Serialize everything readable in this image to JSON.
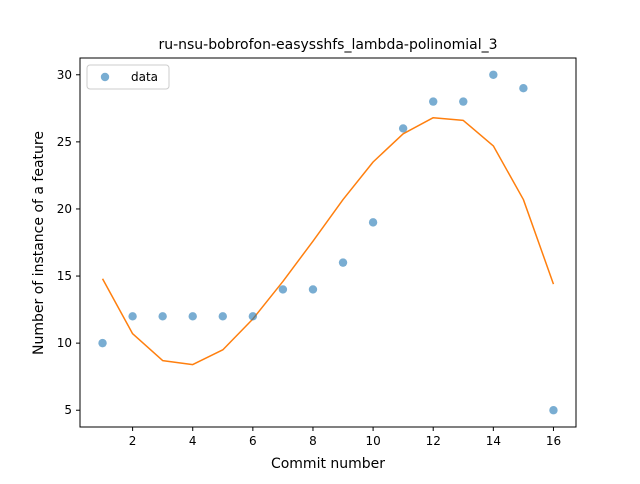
{
  "chart_data": {
    "type": "scatter",
    "title": "ru-nsu-bobrofon-easysshfs_lambda-polinomial_3",
    "xlabel": "Commit number",
    "ylabel": "Number of instance of a feature",
    "xlim": [
      0.25,
      16.75
    ],
    "ylim": [
      3.75,
      31.25
    ],
    "xticks": [
      2,
      4,
      6,
      8,
      10,
      12,
      14,
      16
    ],
    "yticks": [
      5,
      10,
      15,
      20,
      25,
      30
    ],
    "grid": false,
    "legend": {
      "placement": "top-left",
      "entries": [
        {
          "label": "data",
          "color": "#1f77b4",
          "marker": "circle"
        }
      ]
    },
    "series": [
      {
        "name": "data",
        "kind": "scatter",
        "color": "#1f77b4",
        "x": [
          1,
          2,
          3,
          4,
          5,
          6,
          7,
          8,
          9,
          10,
          11,
          12,
          13,
          14,
          15,
          16
        ],
        "y": [
          10,
          12,
          12,
          12,
          12,
          12,
          14,
          14,
          16,
          19,
          26,
          28,
          28,
          30,
          29,
          5
        ]
      },
      {
        "kind": "line",
        "color": "#ff7f0e",
        "x": [
          1,
          2,
          3,
          4,
          5,
          6,
          7,
          8,
          9,
          10,
          11,
          12,
          13,
          14,
          15,
          16
        ],
        "y": [
          14.8,
          10.7,
          8.7,
          8.4,
          9.5,
          11.8,
          14.6,
          17.6,
          20.7,
          23.5,
          25.6,
          26.8,
          26.6,
          24.7,
          20.7,
          14.4
        ]
      }
    ]
  }
}
